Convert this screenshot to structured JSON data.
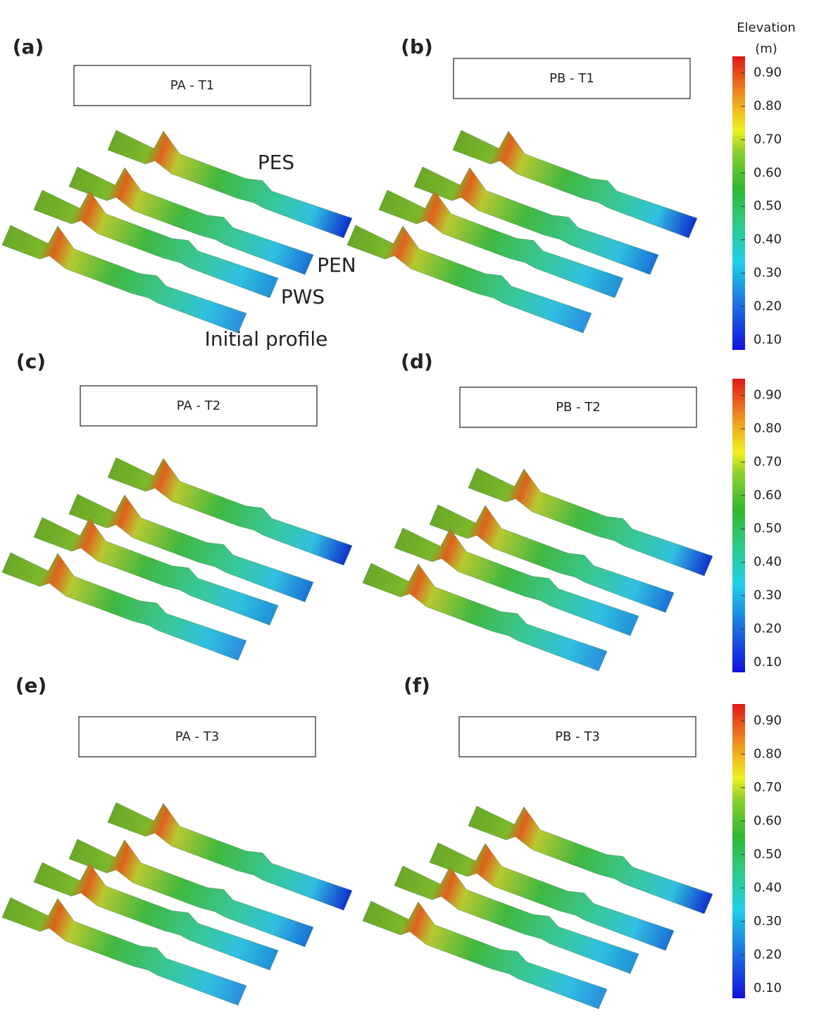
{
  "panels": [
    {
      "label": "(a)",
      "title": "PA - T1"
    },
    {
      "label": "(b)",
      "title": "PB - T1"
    },
    {
      "label": "(c)",
      "title": "PA - T2"
    },
    {
      "label": "(d)",
      "title": "PB - T2"
    },
    {
      "label": "(e)",
      "title": "PA - T3"
    },
    {
      "label": "(f)",
      "title": "PB - T3"
    }
  ],
  "annotations": [
    "PES",
    "PEN",
    "PWS",
    "Initial profile"
  ],
  "colorbars": [
    {
      "title": "Elevation",
      "unit": "(m)",
      "range": [
        0.07,
        0.95
      ],
      "ticks": [
        {
          "value": 0.1,
          "label": "0.10"
        },
        {
          "value": 0.2,
          "label": "0.20"
        },
        {
          "value": 0.3,
          "label": "0.30"
        },
        {
          "value": 0.4,
          "label": "0.40"
        },
        {
          "value": 0.5,
          "label": "0.50"
        },
        {
          "value": 0.6,
          "label": "0.60"
        },
        {
          "value": 0.7,
          "label": "0.70"
        },
        {
          "value": 0.8,
          "label": "0.80"
        },
        {
          "value": 0.9,
          "label": "0.90"
        }
      ]
    },
    {
      "range": [
        0.07,
        0.95
      ],
      "ticks": [
        {
          "value": 0.1,
          "label": "0.10"
        },
        {
          "value": 0.2,
          "label": "0.20"
        },
        {
          "value": 0.3,
          "label": "0.30"
        },
        {
          "value": 0.4,
          "label": "0.40"
        },
        {
          "value": 0.5,
          "label": "0.50"
        },
        {
          "value": 0.6,
          "label": "0.60"
        },
        {
          "value": 0.7,
          "label": "0.70"
        },
        {
          "value": 0.8,
          "label": "0.80"
        },
        {
          "value": 0.9,
          "label": "0.90"
        }
      ]
    },
    {
      "range": [
        0.07,
        0.95
      ],
      "ticks": [
        {
          "value": 0.1,
          "label": "0.10"
        },
        {
          "value": 0.2,
          "label": "0.20"
        },
        {
          "value": 0.3,
          "label": "0.30"
        },
        {
          "value": 0.4,
          "label": "0.40"
        },
        {
          "value": 0.5,
          "label": "0.50"
        },
        {
          "value": 0.6,
          "label": "0.60"
        },
        {
          "value": 0.7,
          "label": "0.70"
        },
        {
          "value": 0.8,
          "label": "0.80"
        },
        {
          "value": 0.9,
          "label": "0.90"
        }
      ]
    }
  ]
}
